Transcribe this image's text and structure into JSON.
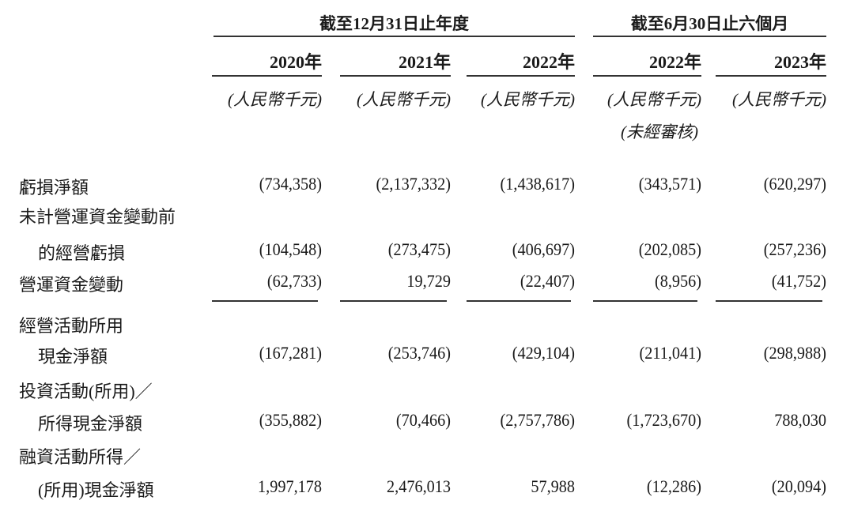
{
  "header": {
    "groups": [
      "截至12月31日止年度",
      "截至6月30日止六個月"
    ],
    "columns": [
      {
        "year": "2020年",
        "unit": "(人民幣千元)",
        "note": ""
      },
      {
        "year": "2021年",
        "unit": "(人民幣千元)",
        "note": ""
      },
      {
        "year": "2022年",
        "unit": "(人民幣千元)",
        "note": ""
      },
      {
        "year": "2022年",
        "unit": "(人民幣千元)",
        "note": "(未經審核)"
      },
      {
        "year": "2023年",
        "unit": "(人民幣千元)",
        "note": ""
      }
    ]
  },
  "rows": [
    {
      "label": [
        "虧損淨額"
      ],
      "values": [
        "(734,358)",
        "(2,137,332)",
        "(1,438,617)",
        "(343,571)",
        "(620,297)"
      ],
      "underline": false
    },
    {
      "label": [
        "未計營運資金變動前",
        "的經營虧損"
      ],
      "values": [
        "(104,548)",
        "(273,475)",
        "(406,697)",
        "(202,085)",
        "(257,236)"
      ],
      "underline": false
    },
    {
      "label": [
        "營運資金變動"
      ],
      "values": [
        "(62,733)",
        "19,729",
        "(22,407)",
        "(8,956)",
        "(41,752)"
      ],
      "underline": true
    },
    {
      "label": [
        "經營活動所用",
        "現金淨額"
      ],
      "values": [
        "(167,281)",
        "(253,746)",
        "(429,104)",
        "(211,041)",
        "(298,988)"
      ],
      "underline": false
    },
    {
      "label": [
        "投資活動(所用)／",
        "所得現金淨額"
      ],
      "values": [
        "(355,882)",
        "(70,466)",
        "(2,757,786)",
        "(1,723,670)",
        "788,030"
      ],
      "underline": false
    },
    {
      "label": [
        "融資活動所得／",
        "(所用)現金淨額"
      ],
      "values": [
        "1,997,178",
        "2,476,013",
        "57,988",
        "(12,286)",
        "(20,094)"
      ],
      "underline": false
    }
  ]
}
